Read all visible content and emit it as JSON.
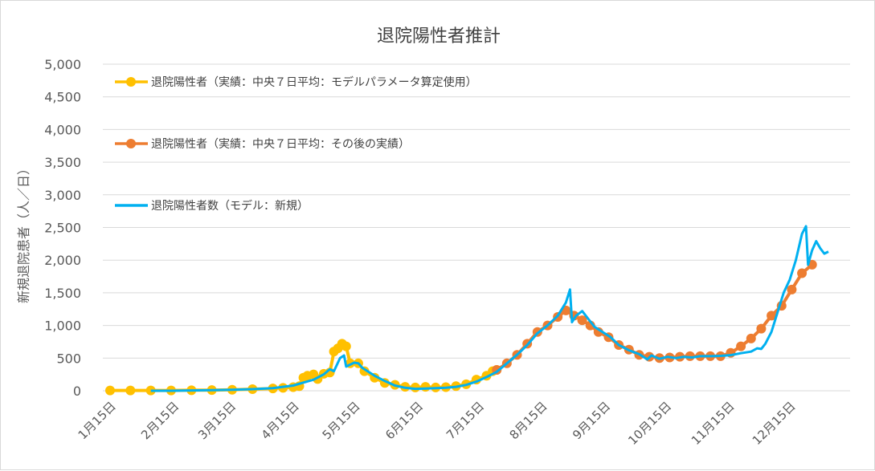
{
  "chart_data": {
    "type": "line",
    "title": "退院陽性者推計",
    "ylabel": "新規退院患者（人／日）",
    "xlabel": "",
    "ylim": [
      0,
      5000
    ],
    "yticks": [
      "0",
      "500",
      "1,000",
      "1,500",
      "2,000",
      "2,500",
      "3,000",
      "3,500",
      "4,000",
      "4,500",
      "5,000"
    ],
    "ytick_values": [
      0,
      500,
      1000,
      1500,
      2000,
      2500,
      3000,
      3500,
      4000,
      4500,
      5000
    ],
    "xticks": [
      "1月15日",
      "2月15日",
      "3月15日",
      "4月15日",
      "5月15日",
      "6月15日",
      "7月15日",
      "8月15日",
      "9月15日",
      "10月15日",
      "11月15日",
      "12月15日"
    ],
    "x_range_days": [
      0,
      353
    ],
    "grid": true,
    "legend_position": "top-left",
    "series": [
      {
        "name": "退院陽性者（実績：中央７日平均：モデルパラメータ算定使用）",
        "color": "#FFC000",
        "marker": "circle",
        "points": [
          [
            0,
            5
          ],
          [
            10,
            5
          ],
          [
            20,
            5
          ],
          [
            30,
            5
          ],
          [
            40,
            8
          ],
          [
            50,
            10
          ],
          [
            60,
            15
          ],
          [
            70,
            25
          ],
          [
            80,
            35
          ],
          [
            85,
            45
          ],
          [
            90,
            55
          ],
          [
            93,
            70
          ],
          [
            95,
            200
          ],
          [
            97,
            230
          ],
          [
            100,
            250
          ],
          [
            102,
            180
          ],
          [
            105,
            260
          ],
          [
            108,
            280
          ],
          [
            110,
            600
          ],
          [
            112,
            650
          ],
          [
            114,
            720
          ],
          [
            116,
            680
          ],
          [
            118,
            420
          ],
          [
            122,
            420
          ],
          [
            125,
            300
          ],
          [
            130,
            200
          ],
          [
            135,
            120
          ],
          [
            140,
            90
          ],
          [
            145,
            60
          ],
          [
            150,
            50
          ],
          [
            155,
            60
          ],
          [
            160,
            50
          ],
          [
            165,
            55
          ],
          [
            170,
            70
          ],
          [
            175,
            100
          ],
          [
            180,
            170
          ],
          [
            185,
            230
          ],
          [
            188,
            300
          ],
          [
            190,
            320
          ]
        ]
      },
      {
        "name": "退院陽性者（実績：中央７日平均：その後の実績）",
        "color": "#ED7D31",
        "marker": "circle",
        "points": [
          [
            190,
            320
          ],
          [
            195,
            420
          ],
          [
            200,
            550
          ],
          [
            205,
            720
          ],
          [
            210,
            900
          ],
          [
            215,
            1000
          ],
          [
            220,
            1130
          ],
          [
            224,
            1230
          ],
          [
            228,
            1150
          ],
          [
            232,
            1080
          ],
          [
            236,
            1000
          ],
          [
            240,
            900
          ],
          [
            245,
            820
          ],
          [
            250,
            700
          ],
          [
            255,
            630
          ],
          [
            260,
            550
          ],
          [
            265,
            520
          ],
          [
            270,
            500
          ],
          [
            275,
            510
          ],
          [
            280,
            520
          ],
          [
            285,
            530
          ],
          [
            290,
            530
          ],
          [
            295,
            530
          ],
          [
            300,
            530
          ],
          [
            305,
            580
          ],
          [
            310,
            680
          ],
          [
            315,
            800
          ],
          [
            320,
            950
          ],
          [
            325,
            1150
          ],
          [
            330,
            1300
          ],
          [
            335,
            1550
          ],
          [
            340,
            1800
          ],
          [
            345,
            1930
          ]
        ]
      },
      {
        "name": "退院陽性者数（モデル：新規）",
        "color": "#00B0F0",
        "marker": "none",
        "points": [
          [
            20,
            0
          ],
          [
            30,
            0
          ],
          [
            40,
            5
          ],
          [
            50,
            10
          ],
          [
            60,
            15
          ],
          [
            70,
            25
          ],
          [
            80,
            40
          ],
          [
            90,
            80
          ],
          [
            100,
            170
          ],
          [
            105,
            250
          ],
          [
            108,
            330
          ],
          [
            110,
            300
          ],
          [
            113,
            500
          ],
          [
            115,
            540
          ],
          [
            116,
            370
          ],
          [
            118,
            400
          ],
          [
            120,
            430
          ],
          [
            122,
            420
          ],
          [
            124,
            350
          ],
          [
            126,
            310
          ],
          [
            130,
            230
          ],
          [
            135,
            150
          ],
          [
            140,
            80
          ],
          [
            145,
            45
          ],
          [
            150,
            30
          ],
          [
            155,
            35
          ],
          [
            160,
            40
          ],
          [
            165,
            45
          ],
          [
            170,
            60
          ],
          [
            175,
            90
          ],
          [
            180,
            140
          ],
          [
            185,
            210
          ],
          [
            190,
            290
          ],
          [
            195,
            420
          ],
          [
            200,
            550
          ],
          [
            205,
            700
          ],
          [
            210,
            880
          ],
          [
            215,
            1000
          ],
          [
            220,
            1150
          ],
          [
            224,
            1350
          ],
          [
            226,
            1550
          ],
          [
            227,
            1050
          ],
          [
            229,
            1150
          ],
          [
            232,
            1220
          ],
          [
            235,
            1100
          ],
          [
            238,
            980
          ],
          [
            242,
            900
          ],
          [
            246,
            820
          ],
          [
            250,
            700
          ],
          [
            255,
            620
          ],
          [
            260,
            560
          ],
          [
            264,
            480
          ],
          [
            266,
            540
          ],
          [
            270,
            490
          ],
          [
            274,
            520
          ],
          [
            278,
            500
          ],
          [
            282,
            520
          ],
          [
            286,
            510
          ],
          [
            290,
            530
          ],
          [
            295,
            530
          ],
          [
            300,
            535
          ],
          [
            305,
            545
          ],
          [
            310,
            575
          ],
          [
            315,
            600
          ],
          [
            318,
            650
          ],
          [
            320,
            640
          ],
          [
            322,
            720
          ],
          [
            325,
            900
          ],
          [
            328,
            1200
          ],
          [
            331,
            1500
          ],
          [
            334,
            1700
          ],
          [
            337,
            2000
          ],
          [
            340,
            2400
          ],
          [
            342,
            2520
          ],
          [
            343,
            1930
          ],
          [
            345,
            2150
          ],
          [
            347,
            2290
          ],
          [
            349,
            2180
          ],
          [
            351,
            2100
          ],
          [
            353,
            2130
          ]
        ]
      }
    ]
  }
}
